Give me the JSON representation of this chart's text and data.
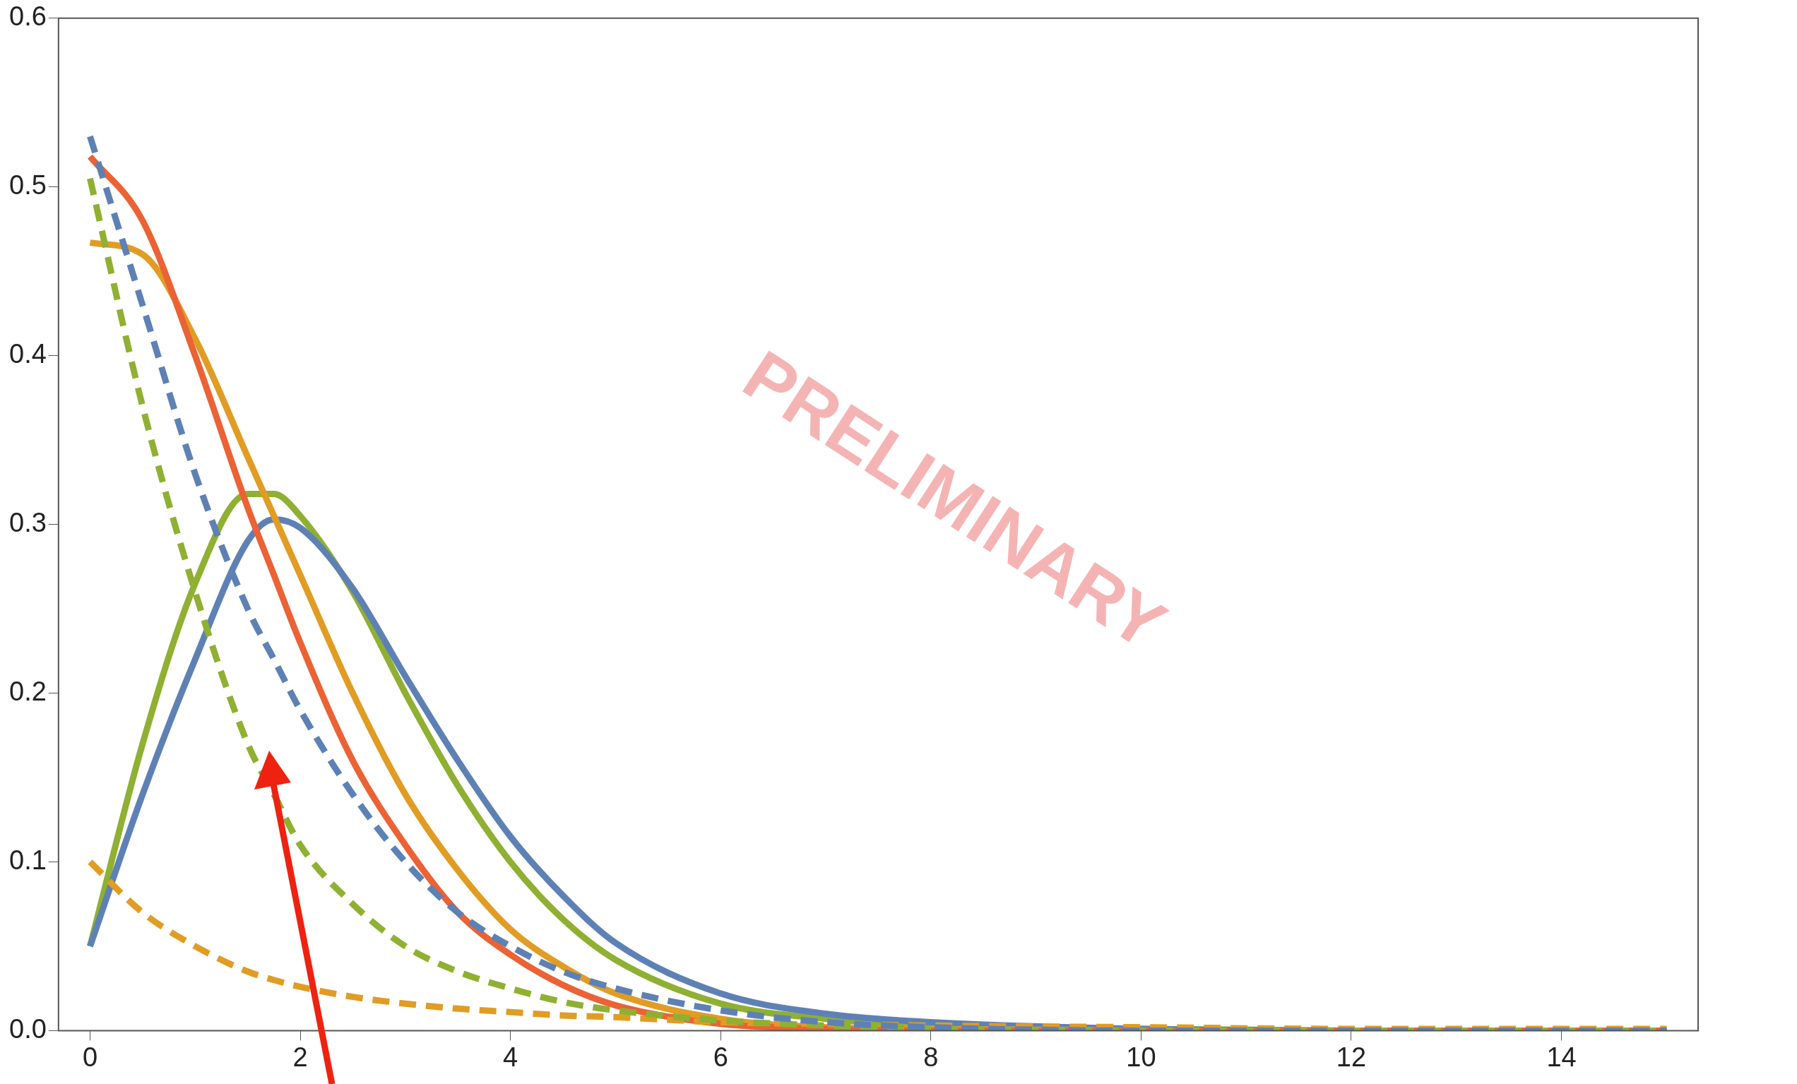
{
  "chart_data": {
    "type": "line",
    "x": [
      0,
      0.5,
      1,
      1.5,
      1.75,
      2,
      2.5,
      3,
      3.5,
      4,
      4.5,
      5,
      6,
      7,
      8,
      10,
      12,
      15
    ],
    "xlim": [
      -0.3,
      15.3
    ],
    "xticks": [
      0,
      2,
      4,
      6,
      8,
      10,
      12,
      14
    ],
    "ylim": [
      0,
      0.6
    ],
    "yticks": [
      {
        "value": 0,
        "label": "0.0"
      },
      {
        "value": 0.1,
        "label": "0.1"
      },
      {
        "value": 0.2,
        "label": "0.2"
      },
      {
        "value": 0.3,
        "label": "0.3"
      },
      {
        "value": 0.4,
        "label": "0.4"
      },
      {
        "value": 0.5,
        "label": "0.5"
      },
      {
        "value": 0.6,
        "label": "0.6"
      }
    ],
    "grid": false,
    "legend": false,
    "marker": "none",
    "annotations": [
      "PRELIMINARY"
    ],
    "series": [
      {
        "color": "#5e81b5",
        "line_style": "dashed",
        "values": [
          0.53,
          0.43,
          0.33,
          0.25,
          0.22,
          0.19,
          0.14,
          0.1,
          0.07,
          0.05,
          0.035,
          0.025,
          0.012,
          0.005,
          0.002,
          0,
          0,
          0
        ]
      },
      {
        "color": "#8fb032",
        "line_style": "dashed",
        "values": [
          0.505,
          0.37,
          0.26,
          0.17,
          0.14,
          0.11,
          0.075,
          0.05,
          0.035,
          0.025,
          0.017,
          0.012,
          0.006,
          0.003,
          0.001,
          0,
          0,
          0
        ]
      },
      {
        "color": "#e19c24",
        "line_style": "dashed",
        "values": [
          0.1,
          0.07,
          0.05,
          0.035,
          0.03,
          0.026,
          0.02,
          0.016,
          0.013,
          0.011,
          0.009,
          0.008,
          0.005,
          0.004,
          0.003,
          0.002,
          0.001,
          0.001
        ]
      },
      {
        "color": "#eb6235",
        "line_style": "solid",
        "values": [
          0.518,
          0.48,
          0.4,
          0.31,
          0.27,
          0.23,
          0.16,
          0.11,
          0.07,
          0.045,
          0.027,
          0.015,
          0.004,
          0.001,
          0,
          0,
          0,
          0
        ]
      },
      {
        "color": "#e19c24",
        "line_style": "solid",
        "values": [
          0.467,
          0.46,
          0.41,
          0.34,
          0.305,
          0.27,
          0.2,
          0.14,
          0.095,
          0.06,
          0.038,
          0.022,
          0.007,
          0.002,
          0.001,
          0,
          0,
          0
        ]
      },
      {
        "color": "#5e81b5",
        "line_style": "solid",
        "values": [
          0.05,
          0.14,
          0.22,
          0.29,
          0.303,
          0.298,
          0.262,
          0.21,
          0.16,
          0.115,
          0.08,
          0.052,
          0.022,
          0.01,
          0.005,
          0.001,
          0,
          0
        ]
      },
      {
        "color": "#8fb032",
        "line_style": "solid",
        "values": [
          0.05,
          0.17,
          0.265,
          0.318,
          0.318,
          0.305,
          0.26,
          0.2,
          0.145,
          0.1,
          0.066,
          0.042,
          0.016,
          0.007,
          0.003,
          0.001,
          0,
          0
        ]
      }
    ]
  }
}
